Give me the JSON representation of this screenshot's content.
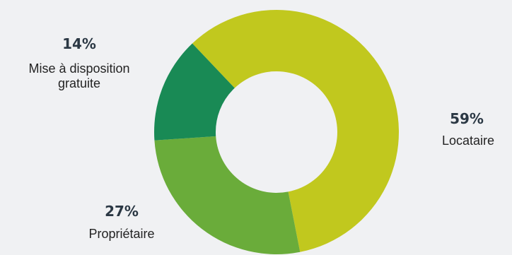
{
  "chart_data": {
    "type": "pie",
    "variant": "donut",
    "slices": [
      {
        "label": "Locataire",
        "value": 59,
        "pct_label": "59%",
        "color": "#c1c81e"
      },
      {
        "label": "Propriétaire",
        "value": 27,
        "pct_label": "27%",
        "color": "#6aac3a"
      },
      {
        "label": "Mise à disposition gratuite",
        "value": 14,
        "pct_label": "14%",
        "color": "#198a55"
      }
    ],
    "legend": "none",
    "label_placement": "outside"
  }
}
